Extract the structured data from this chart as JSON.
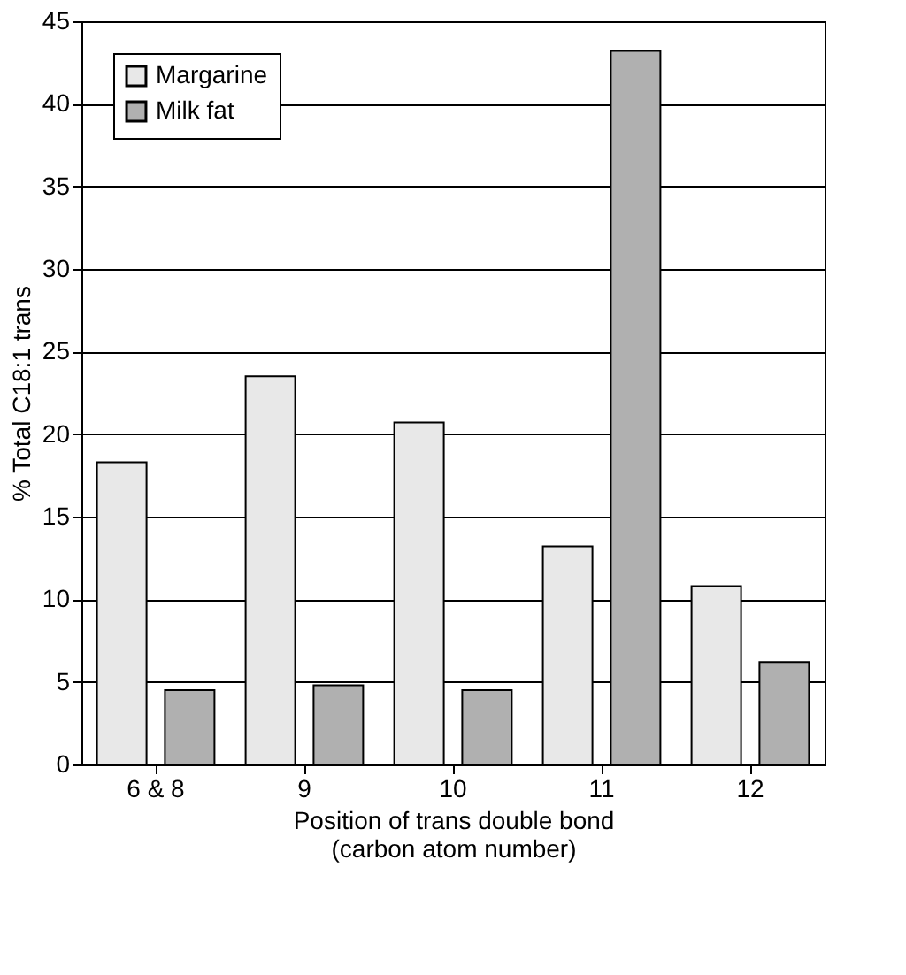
{
  "chart_data": {
    "type": "bar",
    "xlabel": "Position of trans double bond\n(carbon atom number)",
    "ylabel": "% Total C18:1 trans",
    "categories": [
      "6 & 8",
      "9",
      "10",
      "11",
      "12"
    ],
    "series": [
      {
        "name": "Margarine",
        "color": "#e8e8e8",
        "values": [
          18.3,
          23.5,
          20.7,
          13.2,
          10.8
        ]
      },
      {
        "name": "Milk fat",
        "color": "#b0b0b0",
        "values": [
          4.5,
          4.8,
          4.5,
          43.2,
          6.2
        ]
      }
    ],
    "ylim": [
      0,
      45
    ],
    "yticks": [
      0,
      5,
      10,
      15,
      20,
      25,
      30,
      35,
      40,
      45
    ],
    "grid": "y",
    "legend": "top left"
  }
}
